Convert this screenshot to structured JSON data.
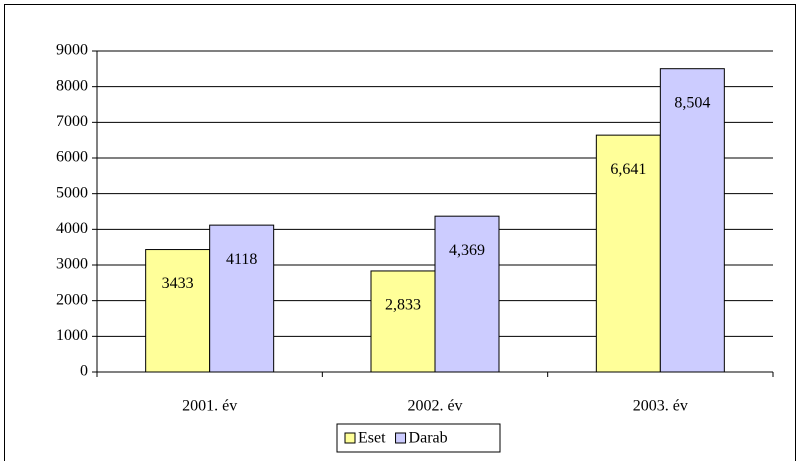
{
  "chart_data": {
    "type": "bar",
    "categories": [
      "2001. év",
      "2002. év",
      "2003. év"
    ],
    "series": [
      {
        "name": "Eset",
        "color": "#ffff99",
        "values": [
          3433,
          2833,
          6641
        ],
        "value_labels": [
          "3433",
          "2,833",
          "6,641"
        ]
      },
      {
        "name": "Darab",
        "color": "#ccccff",
        "values": [
          4118,
          4369,
          8504
        ],
        "value_labels": [
          "4118",
          "4,369",
          "8,504"
        ]
      }
    ],
    "ylim": [
      0,
      9000
    ],
    "yticks": [
      0,
      1000,
      2000,
      3000,
      4000,
      5000,
      6000,
      7000,
      8000,
      9000
    ],
    "grid": true,
    "legend": "bottom"
  }
}
